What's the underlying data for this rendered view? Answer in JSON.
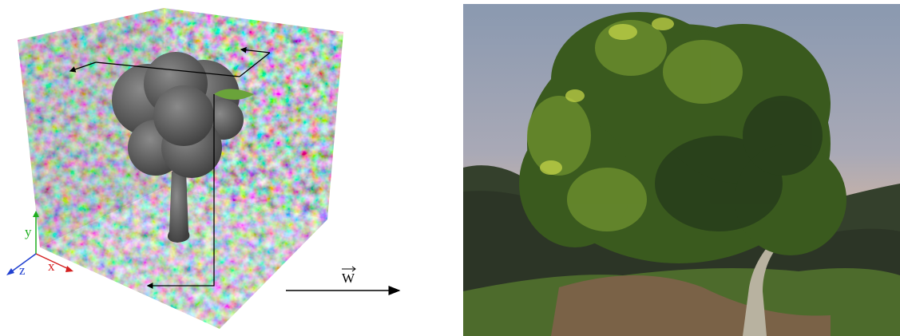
{
  "figure": {
    "axes": {
      "x": "x",
      "y": "y",
      "z": "z"
    },
    "vector_label": "W"
  }
}
